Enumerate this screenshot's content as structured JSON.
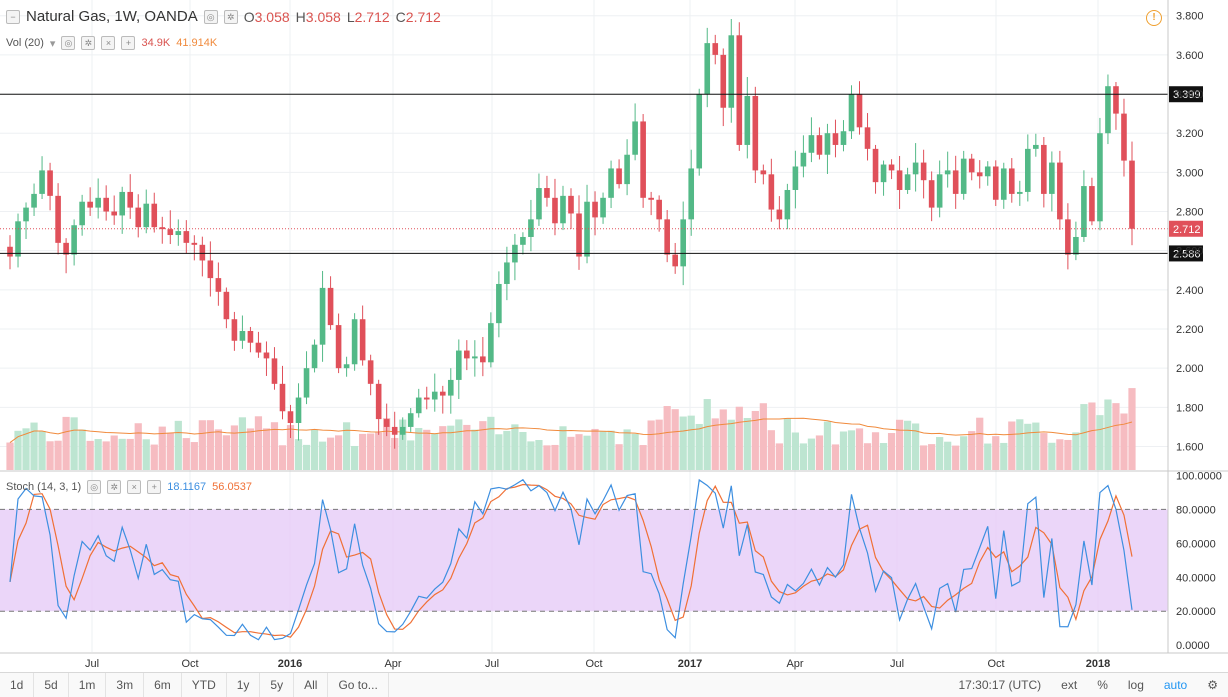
{
  "symbol": {
    "name": "Natural Gas, 1W, OANDA",
    "open_label": "O",
    "open": "3.058",
    "high_label": "H",
    "high": "3.058",
    "low_label": "L",
    "low": "2.712",
    "close_label": "C",
    "close": "2.712"
  },
  "volume_indicator": {
    "name": "Vol (20)",
    "value": "34.9K",
    "ma_value": "41.914K"
  },
  "stoch_indicator": {
    "name": "Stoch (14, 3, 1)",
    "k_value": "18.1167",
    "d_value": "56.0537"
  },
  "bottom_toolbar": {
    "ranges": [
      "1d",
      "5d",
      "1m",
      "3m",
      "6m",
      "YTD",
      "1y",
      "5y",
      "All"
    ],
    "goto": "Go to...",
    "time": "17:30:17 (UTC)",
    "ext": "ext",
    "percent": "%",
    "log": "log",
    "auto": "auto"
  },
  "colors": {
    "up": "#53b987",
    "down": "#e0505a",
    "up_vol": "#bde5d1",
    "down_vol": "#f6bcc1",
    "stoch_k": "#3d8fe0",
    "stoch_d": "#f07036",
    "stoch_band": "#e6ccf7",
    "vol_ma": "#f08a3c"
  },
  "chart_data": {
    "type": "candlestick",
    "title": "Natural Gas, 1W, OANDA",
    "price_axis": {
      "ticks": [
        "3.800",
        "3.600",
        "3.400",
        "3.200",
        "3.000",
        "2.800",
        "2.600",
        "2.400",
        "2.200",
        "2.000",
        "1.800",
        "1.600"
      ],
      "range": [
        1.48,
        3.87
      ]
    },
    "x_axis_labels": [
      "Jul",
      "Oct",
      "2016",
      "Apr",
      "Jul",
      "Oct",
      "2017",
      "Apr",
      "Jul",
      "Oct",
      "2018"
    ],
    "horizontal_lines": [
      3.399,
      2.586
    ],
    "current_price": 2.712,
    "line_labels": [
      "3.399",
      "2.586",
      "2.712"
    ],
    "close_prices": [
      2.57,
      2.75,
      2.82,
      2.89,
      3.01,
      2.88,
      2.64,
      2.58,
      2.73,
      2.85,
      2.82,
      2.87,
      2.8,
      2.78,
      2.9,
      2.82,
      2.72,
      2.84,
      2.72,
      2.71,
      2.68,
      2.7,
      2.64,
      2.63,
      2.55,
      2.46,
      2.39,
      2.25,
      2.14,
      2.19,
      2.13,
      2.08,
      2.05,
      1.92,
      1.78,
      1.72,
      1.85,
      2.0,
      2.12,
      2.41,
      2.22,
      2.0,
      2.02,
      2.25,
      2.04,
      1.92,
      1.74,
      1.7,
      1.66,
      1.7,
      1.77,
      1.85,
      1.84,
      1.88,
      1.86,
      1.94,
      2.09,
      2.05,
      2.06,
      2.03,
      2.23,
      2.43,
      2.54,
      2.63,
      2.67,
      2.76,
      2.92,
      2.87,
      2.74,
      2.88,
      2.79,
      2.57,
      2.85,
      2.77,
      2.87,
      3.02,
      2.94,
      3.09,
      3.26,
      2.87,
      2.86,
      2.76,
      2.58,
      2.52,
      2.76,
      3.02,
      3.4,
      3.66,
      3.6,
      3.33,
      3.7,
      3.14,
      3.39,
      3.01,
      2.99,
      2.81,
      2.76,
      2.91,
      3.03,
      3.1,
      3.19,
      3.09,
      3.2,
      3.14,
      3.21,
      3.4,
      3.23,
      3.12,
      2.95,
      3.04,
      3.01,
      2.91,
      2.99,
      3.05,
      2.96,
      2.82,
      2.99,
      3.01,
      2.89,
      3.07,
      3.0,
      2.98,
      3.03,
      2.86,
      3.02,
      2.89,
      2.9,
      3.12,
      3.14,
      2.89,
      3.05,
      2.76,
      2.58,
      2.67,
      2.93,
      2.75,
      3.2,
      3.44,
      3.3,
      3.06,
      2.712
    ],
    "volume_axis": {
      "max": 100
    },
    "stoch_axis": {
      "ticks": [
        "100.0000",
        "80.0000",
        "60.0000",
        "40.0000",
        "20.0000",
        "0.0000"
      ],
      "range": [
        -4,
        102
      ],
      "upper_band": 80,
      "lower_band": 20
    }
  }
}
